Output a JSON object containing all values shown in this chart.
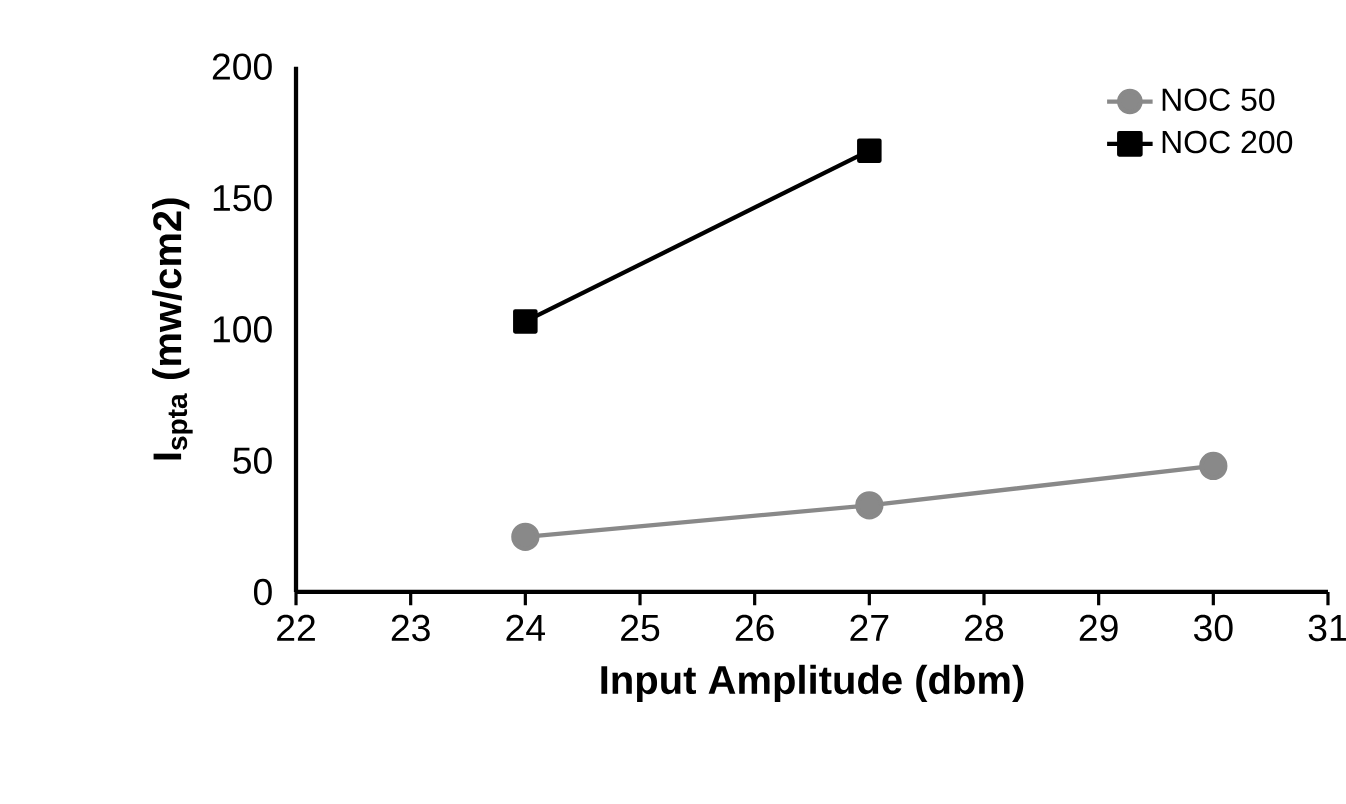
{
  "chart_data": {
    "type": "line",
    "xlabel": "Input Amplitude (dbm)",
    "ylabel": "I$_{spta}$ (mw/cm2)",
    "xlim": [
      22,
      31
    ],
    "xticks": [
      22,
      23,
      24,
      25,
      26,
      27,
      28,
      29,
      30,
      31
    ],
    "ylim": [
      0,
      200
    ],
    "yticks": [
      0,
      50,
      100,
      150,
      200
    ],
    "legend": "top right",
    "grid": false,
    "series": [
      {
        "name": "NOC 50",
        "color": "#898989",
        "marker": "circle",
        "x": [
          24,
          27,
          30
        ],
        "values": [
          21,
          33,
          48
        ]
      },
      {
        "name": "NOC 200",
        "color": "#000000",
        "marker": "square",
        "x": [
          24,
          27
        ],
        "values": [
          103,
          168
        ]
      }
    ]
  }
}
